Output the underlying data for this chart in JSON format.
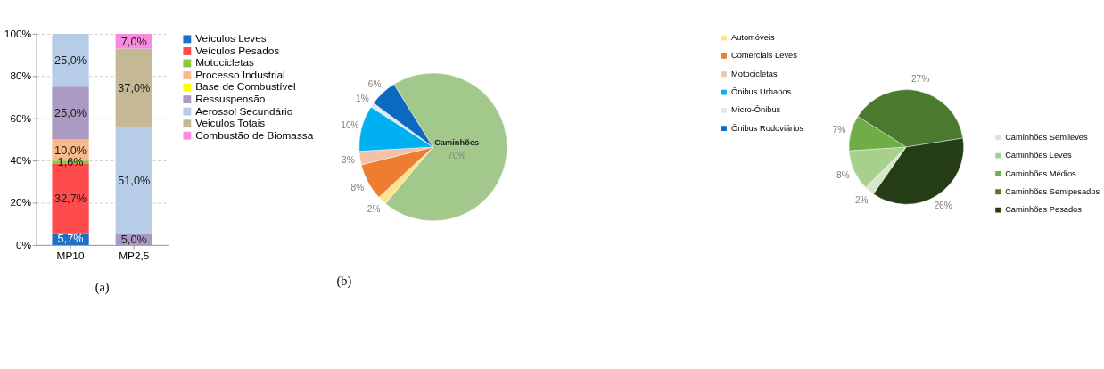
{
  "chart_data": [
    {
      "type": "bar",
      "stacked": true,
      "categories": [
        "MP10",
        "MP2,5"
      ],
      "ylim": [
        0,
        100
      ],
      "yticks": [
        {
          "value": 0,
          "label": "0%"
        },
        {
          "value": 20,
          "label": "20%"
        },
        {
          "value": 40,
          "label": "40%"
        },
        {
          "value": 60,
          "label": "60%"
        },
        {
          "value": 80,
          "label": "80%"
        },
        {
          "value": 100,
          "label": "100%"
        }
      ],
      "grid": "y",
      "legend": "right",
      "annotations": [
        "(a)"
      ],
      "series": [
        {
          "name": "Veículos Leves",
          "color": "#1f6fc4",
          "values": [
            5.7,
            null
          ],
          "value_labels": [
            "5,7%",
            null
          ]
        },
        {
          "name": "Veículos Pesados",
          "color": "#ff4b4b",
          "values": [
            32.7,
            null
          ],
          "value_labels": [
            "32,7%",
            null
          ]
        },
        {
          "name": "Motocicletas",
          "color": "#8dc63f",
          "values": [
            1.6,
            null
          ],
          "value_labels": [
            "1,6%",
            null
          ]
        },
        {
          "name": "Processo Industrial",
          "color": "#f9b98a",
          "values": [
            10.0,
            null
          ],
          "value_labels": [
            "10,0%",
            null
          ]
        },
        {
          "name": "Base de Combustível",
          "color": "#ffff00",
          "values": [
            null,
            null
          ]
        },
        {
          "name": "Ressuspensão",
          "color": "#ab9ac4",
          "values": [
            25.0,
            5.0
          ],
          "value_labels": [
            "25,0%",
            "5,0%"
          ]
        },
        {
          "name": "Aerossol Secundário",
          "color": "#b7cce6",
          "values": [
            25.0,
            51.0
          ],
          "value_labels": [
            "25,0%",
            "51,0%"
          ]
        },
        {
          "name": "Veiculos Totais",
          "color": "#c4b994",
          "values": [
            null,
            37.0
          ],
          "value_labels": [
            null,
            "37,0%"
          ]
        },
        {
          "name": "Combustão de Biomassa",
          "color": "#f98ae0",
          "values": [
            null,
            7.0
          ],
          "value_labels": [
            null,
            "7,0%"
          ]
        }
      ]
    },
    {
      "type": "pie",
      "categories": [
        "Automóveis",
        "Comerciais Leves",
        "Motocicletas",
        "Ônibus Urbanos",
        "Micro-Ônibus",
        "Ônibus Rodoviários",
        "Caminhões"
      ],
      "values": [
        2,
        8,
        3,
        10,
        1,
        6,
        70
      ],
      "value_labels": [
        "2%",
        "8%",
        "3%",
        "10%",
        "1%",
        "6%",
        "70%"
      ],
      "colors": [
        "#fde38a",
        "#ed7d31",
        "#f5c1a5",
        "#00b0f0",
        "#dde9f6",
        "#0b6abf",
        "#a2c88c"
      ],
      "annotations": [
        "(b)"
      ],
      "legend": "right"
    },
    {
      "type": "pie",
      "categories": [
        "Caminhões Semileves",
        "Caminhões Leves",
        "Caminhões Médios",
        "Caminhões Semipesados",
        "Caminhões Pesados"
      ],
      "values": [
        2,
        8,
        7,
        27,
        26
      ],
      "value_labels": [
        "2%",
        "8%",
        "7%",
        "27%",
        "26%"
      ],
      "colors": [
        "#d5e8cc",
        "#a8d08d",
        "#70ad47",
        "#4b7a2e",
        "#243d17"
      ],
      "legend": "right"
    }
  ]
}
